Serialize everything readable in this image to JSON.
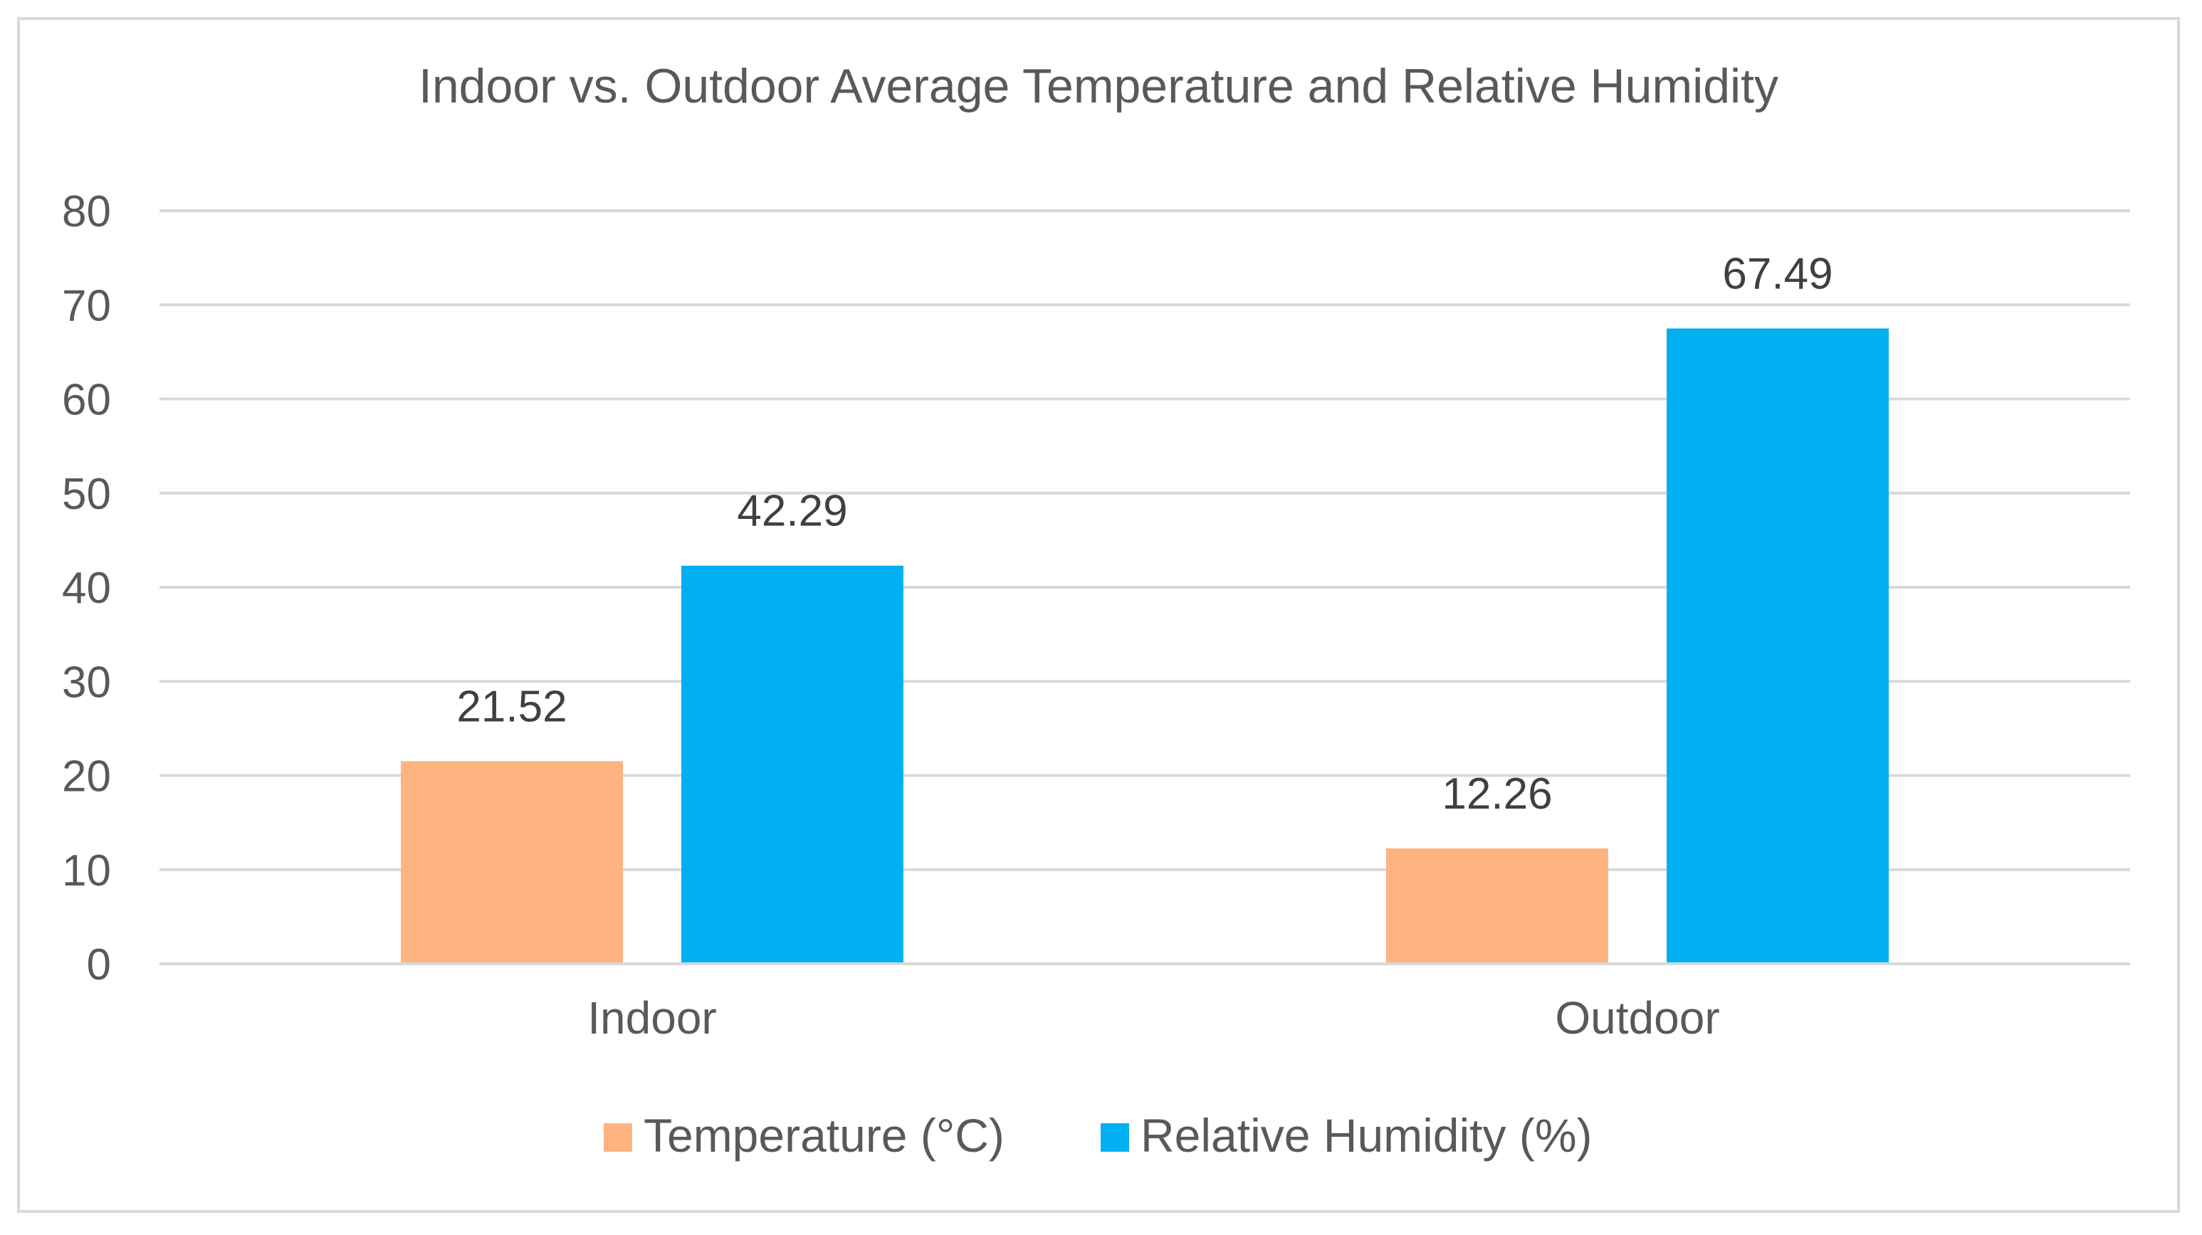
{
  "chart_data": {
    "type": "bar",
    "title": "Indoor vs. Outdoor Average Temperature and Relative Humidity",
    "categories": [
      "Indoor",
      "Outdoor"
    ],
    "series": [
      {
        "name": "Temperature (°C)",
        "color": "#ffb380",
        "values": [
          21.52,
          12.26
        ],
        "labels": [
          "21.52",
          "12.26"
        ]
      },
      {
        "name": "Relative Humidity (%)",
        "color": "#00b0f0",
        "values": [
          42.29,
          67.49
        ],
        "labels": [
          "42.29",
          "67.49"
        ]
      }
    ],
    "ylim": [
      0,
      80
    ],
    "yticks": [
      "0",
      "10",
      "20",
      "30",
      "40",
      "50",
      "60",
      "70",
      "80"
    ],
    "grid": true,
    "legend": "bottom",
    "xlabel": "",
    "ylabel": ""
  }
}
